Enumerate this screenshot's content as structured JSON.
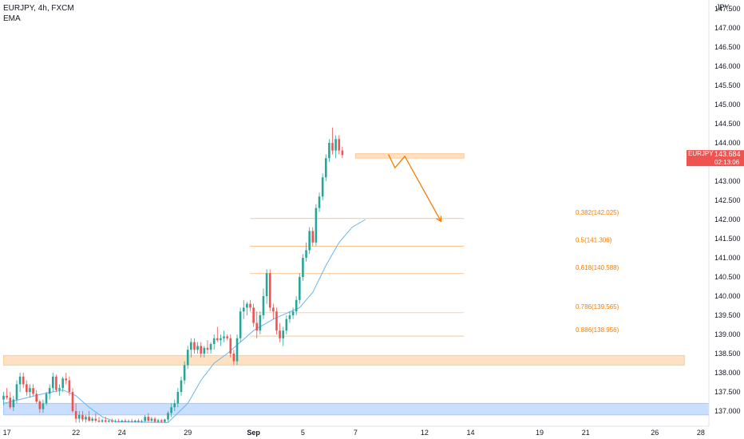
{
  "header": {
    "title": "EURJPY, 4h, FXCM",
    "indicator": "EMA"
  },
  "chart_data": {
    "type": "candlestick",
    "symbol": "EURJPY",
    "timeframe": "4h",
    "source": "FXCM",
    "currency_label": "JPY",
    "ylim": [
      136.7,
      148.0
    ],
    "y_ticks": [
      "137.000",
      "137.500",
      "138.000",
      "138.500",
      "139.000",
      "139.500",
      "140.000",
      "140.500",
      "141.000",
      "141.500",
      "142.000",
      "142.500",
      "143.000",
      "143.500",
      "144.000",
      "144.500",
      "145.000",
      "145.500",
      "146.000",
      "146.500",
      "147.000",
      "147.500"
    ],
    "x_ticks": [
      "17",
      "22",
      "24",
      "29",
      "Sep",
      "5",
      "7",
      "12",
      "14",
      "19",
      "21",
      "26",
      "28"
    ],
    "x_tick_index": [
      1,
      22,
      36,
      56,
      76,
      91,
      107,
      128,
      142,
      163,
      177,
      198,
      212
    ],
    "last_price": {
      "symbol": "EURJPY",
      "price": "143.684",
      "countdown": "02:13:06",
      "color": "#ef5350"
    },
    "zones": [
      {
        "y_low": 136.9,
        "y_high": 137.2,
        "from_index": 0,
        "to_index": 228,
        "color": "#a6c8ff"
      },
      {
        "y_low": 138.2,
        "y_high": 138.45,
        "from_index": 0,
        "to_index": 207,
        "color": "#ffcc99"
      },
      {
        "y_low": 143.6,
        "y_high": 143.72,
        "from_index": 107,
        "to_index": 140,
        "color": "#ffcc99"
      }
    ],
    "fib_levels": [
      {
        "label": "0.382(142.025)",
        "value": 142.025
      },
      {
        "label": "0.5(141.306)",
        "value": 141.306
      },
      {
        "label": "0.618(140.588)",
        "value": 140.588
      },
      {
        "label": "0.786(139.565)",
        "value": 139.565
      },
      {
        "label": "0.886(138.956)",
        "value": 138.956
      }
    ],
    "fib_range": {
      "from_index": 75,
      "to_index": 140
    },
    "projection_path": [
      {
        "i": 117,
        "price": 143.7
      },
      {
        "i": 119,
        "price": 143.35
      },
      {
        "i": 122,
        "price": 143.65
      },
      {
        "i": 133,
        "price": 141.95
      }
    ],
    "colors": {
      "up": "#26a69a",
      "down": "#ef5350",
      "ema": "#64b5f6",
      "fib": "#f57c00",
      "projection": "#f57c00",
      "axis": "#e0e3eb"
    },
    "candles": [
      {
        "o": 137.3,
        "h": 137.5,
        "l": 137.15,
        "c": 137.4
      },
      {
        "o": 137.4,
        "h": 137.6,
        "l": 137.3,
        "c": 137.35
      },
      {
        "o": 137.35,
        "h": 137.5,
        "l": 137.05,
        "c": 137.1
      },
      {
        "o": 137.1,
        "h": 137.4,
        "l": 137.0,
        "c": 137.3
      },
      {
        "o": 137.3,
        "h": 137.8,
        "l": 137.2,
        "c": 137.7
      },
      {
        "o": 137.7,
        "h": 138.0,
        "l": 137.5,
        "c": 137.9
      },
      {
        "o": 137.9,
        "h": 138.0,
        "l": 137.6,
        "c": 137.7
      },
      {
        "o": 137.7,
        "h": 137.8,
        "l": 137.4,
        "c": 137.5
      },
      {
        "o": 137.5,
        "h": 137.7,
        "l": 137.35,
        "c": 137.6
      },
      {
        "o": 137.6,
        "h": 137.7,
        "l": 137.4,
        "c": 137.45
      },
      {
        "o": 137.45,
        "h": 137.55,
        "l": 137.2,
        "c": 137.25
      },
      {
        "o": 137.25,
        "h": 137.3,
        "l": 136.95,
        "c": 137.05
      },
      {
        "o": 137.05,
        "h": 137.3,
        "l": 136.95,
        "c": 137.2
      },
      {
        "o": 137.2,
        "h": 137.5,
        "l": 137.15,
        "c": 137.45
      },
      {
        "o": 137.45,
        "h": 137.7,
        "l": 137.3,
        "c": 137.6
      },
      {
        "o": 137.6,
        "h": 138.0,
        "l": 137.5,
        "c": 137.9
      },
      {
        "o": 137.9,
        "h": 137.95,
        "l": 137.5,
        "c": 137.55
      },
      {
        "o": 137.55,
        "h": 137.7,
        "l": 137.4,
        "c": 137.6
      },
      {
        "o": 137.6,
        "h": 137.9,
        "l": 137.5,
        "c": 137.85
      },
      {
        "o": 137.85,
        "h": 138.0,
        "l": 137.7,
        "c": 137.8
      },
      {
        "o": 137.8,
        "h": 137.9,
        "l": 137.4,
        "c": 137.5
      },
      {
        "o": 137.5,
        "h": 137.6,
        "l": 136.95,
        "c": 137.0
      },
      {
        "o": 137.0,
        "h": 137.2,
        "l": 136.7,
        "c": 136.8
      },
      {
        "o": 136.8,
        "h": 137.0,
        "l": 136.7,
        "c": 136.9
      },
      {
        "o": 136.9,
        "h": 137.0,
        "l": 136.72,
        "c": 136.78
      },
      {
        "o": 136.78,
        "h": 136.9,
        "l": 136.7,
        "c": 136.85
      },
      {
        "o": 136.85,
        "h": 137.0,
        "l": 136.72,
        "c": 136.75
      },
      {
        "o": 136.75,
        "h": 136.85,
        "l": 136.7,
        "c": 136.8
      },
      {
        "o": 136.8,
        "h": 136.95,
        "l": 136.7,
        "c": 136.75
      },
      {
        "o": 136.75,
        "h": 136.85,
        "l": 136.7,
        "c": 136.72
      },
      {
        "o": 136.72,
        "h": 136.8,
        "l": 136.7,
        "c": 136.76
      },
      {
        "o": 136.76,
        "h": 136.85,
        "l": 136.7,
        "c": 136.72
      },
      {
        "o": 136.72,
        "h": 136.78,
        "l": 136.7,
        "c": 136.75
      },
      {
        "o": 136.75,
        "h": 136.8,
        "l": 136.7,
        "c": 136.72
      },
      {
        "o": 136.72,
        "h": 136.78,
        "l": 136.7,
        "c": 136.74
      },
      {
        "o": 136.74,
        "h": 136.8,
        "l": 136.7,
        "c": 136.72
      },
      {
        "o": 136.72,
        "h": 136.78,
        "l": 136.7,
        "c": 136.75
      },
      {
        "o": 136.75,
        "h": 136.8,
        "l": 136.7,
        "c": 136.72
      },
      {
        "o": 136.72,
        "h": 136.78,
        "l": 136.7,
        "c": 136.74
      },
      {
        "o": 136.74,
        "h": 136.8,
        "l": 136.7,
        "c": 136.72
      },
      {
        "o": 136.72,
        "h": 136.78,
        "l": 136.7,
        "c": 136.75
      },
      {
        "o": 136.75,
        "h": 136.8,
        "l": 136.7,
        "c": 136.72
      },
      {
        "o": 136.72,
        "h": 136.78,
        "l": 136.7,
        "c": 136.74
      },
      {
        "o": 136.74,
        "h": 136.9,
        "l": 136.7,
        "c": 136.85
      },
      {
        "o": 136.85,
        "h": 136.95,
        "l": 136.7,
        "c": 136.75
      },
      {
        "o": 136.75,
        "h": 136.85,
        "l": 136.7,
        "c": 136.8
      },
      {
        "o": 136.8,
        "h": 136.85,
        "l": 136.7,
        "c": 136.72
      },
      {
        "o": 136.72,
        "h": 136.8,
        "l": 136.7,
        "c": 136.76
      },
      {
        "o": 136.76,
        "h": 136.8,
        "l": 136.7,
        "c": 136.72
      },
      {
        "o": 136.72,
        "h": 136.8,
        "l": 136.7,
        "c": 136.78
      },
      {
        "o": 136.78,
        "h": 137.0,
        "l": 136.72,
        "c": 136.95
      },
      {
        "o": 136.95,
        "h": 137.2,
        "l": 136.85,
        "c": 137.1
      },
      {
        "o": 137.1,
        "h": 137.3,
        "l": 137.0,
        "c": 137.2
      },
      {
        "o": 137.2,
        "h": 137.6,
        "l": 137.1,
        "c": 137.5
      },
      {
        "o": 137.5,
        "h": 137.9,
        "l": 137.4,
        "c": 137.8
      },
      {
        "o": 137.8,
        "h": 138.3,
        "l": 137.7,
        "c": 138.2
      },
      {
        "o": 138.2,
        "h": 138.7,
        "l": 138.1,
        "c": 138.6
      },
      {
        "o": 138.6,
        "h": 138.9,
        "l": 138.4,
        "c": 138.8
      },
      {
        "o": 138.8,
        "h": 138.9,
        "l": 138.5,
        "c": 138.6
      },
      {
        "o": 138.6,
        "h": 138.8,
        "l": 138.5,
        "c": 138.7
      },
      {
        "o": 138.7,
        "h": 138.8,
        "l": 138.4,
        "c": 138.5
      },
      {
        "o": 138.5,
        "h": 138.7,
        "l": 138.4,
        "c": 138.65
      },
      {
        "o": 138.65,
        "h": 138.85,
        "l": 138.5,
        "c": 138.6
      },
      {
        "o": 138.6,
        "h": 138.8,
        "l": 138.5,
        "c": 138.75
      },
      {
        "o": 138.75,
        "h": 139.0,
        "l": 138.6,
        "c": 138.9
      },
      {
        "o": 138.9,
        "h": 139.2,
        "l": 138.8,
        "c": 138.85
      },
      {
        "o": 138.85,
        "h": 139.0,
        "l": 138.7,
        "c": 138.9
      },
      {
        "o": 138.9,
        "h": 139.1,
        "l": 138.8,
        "c": 138.95
      },
      {
        "o": 138.95,
        "h": 139.0,
        "l": 138.85,
        "c": 138.9
      },
      {
        "o": 138.9,
        "h": 139.0,
        "l": 138.4,
        "c": 138.5
      },
      {
        "o": 138.5,
        "h": 138.6,
        "l": 138.2,
        "c": 138.3
      },
      {
        "o": 138.3,
        "h": 139.0,
        "l": 138.2,
        "c": 138.9
      },
      {
        "o": 138.9,
        "h": 139.7,
        "l": 138.8,
        "c": 139.6
      },
      {
        "o": 139.6,
        "h": 139.9,
        "l": 139.4,
        "c": 139.7
      },
      {
        "o": 139.7,
        "h": 139.85,
        "l": 139.5,
        "c": 139.8
      },
      {
        "o": 139.8,
        "h": 139.9,
        "l": 139.6,
        "c": 139.7
      },
      {
        "o": 139.7,
        "h": 139.8,
        "l": 139.2,
        "c": 139.3
      },
      {
        "o": 139.3,
        "h": 139.6,
        "l": 138.9,
        "c": 139.1
      },
      {
        "o": 139.1,
        "h": 139.6,
        "l": 139.0,
        "c": 139.5
      },
      {
        "o": 139.5,
        "h": 140.2,
        "l": 139.4,
        "c": 140.0
      },
      {
        "o": 140.0,
        "h": 140.7,
        "l": 139.8,
        "c": 140.6
      },
      {
        "o": 140.6,
        "h": 140.7,
        "l": 139.6,
        "c": 139.7
      },
      {
        "o": 139.7,
        "h": 139.8,
        "l": 139.4,
        "c": 139.6
      },
      {
        "o": 139.6,
        "h": 139.7,
        "l": 139.0,
        "c": 139.1
      },
      {
        "o": 139.1,
        "h": 139.3,
        "l": 138.8,
        "c": 138.9
      },
      {
        "o": 138.9,
        "h": 139.2,
        "l": 138.7,
        "c": 139.1
      },
      {
        "o": 139.1,
        "h": 139.5,
        "l": 139.0,
        "c": 139.4
      },
      {
        "o": 139.4,
        "h": 139.6,
        "l": 139.3,
        "c": 139.5
      },
      {
        "o": 139.5,
        "h": 139.7,
        "l": 139.4,
        "c": 139.6
      },
      {
        "o": 139.6,
        "h": 140.0,
        "l": 139.5,
        "c": 139.9
      },
      {
        "o": 139.9,
        "h": 140.6,
        "l": 139.8,
        "c": 140.5
      },
      {
        "o": 140.5,
        "h": 141.1,
        "l": 140.4,
        "c": 141.0
      },
      {
        "o": 141.0,
        "h": 141.4,
        "l": 140.9,
        "c": 141.2
      },
      {
        "o": 141.2,
        "h": 141.8,
        "l": 141.1,
        "c": 141.7
      },
      {
        "o": 141.7,
        "h": 141.8,
        "l": 141.3,
        "c": 141.4
      },
      {
        "o": 141.4,
        "h": 142.4,
        "l": 141.3,
        "c": 142.3
      },
      {
        "o": 142.3,
        "h": 142.7,
        "l": 142.2,
        "c": 142.6
      },
      {
        "o": 142.6,
        "h": 143.2,
        "l": 142.5,
        "c": 143.1
      },
      {
        "o": 143.1,
        "h": 143.7,
        "l": 143.0,
        "c": 143.6
      },
      {
        "o": 143.6,
        "h": 144.1,
        "l": 143.5,
        "c": 144.0
      },
      {
        "o": 144.0,
        "h": 144.4,
        "l": 143.7,
        "c": 143.8
      },
      {
        "o": 143.8,
        "h": 144.2,
        "l": 143.6,
        "c": 144.1
      },
      {
        "o": 144.1,
        "h": 144.2,
        "l": 143.7,
        "c": 143.8
      },
      {
        "o": 143.8,
        "h": 143.9,
        "l": 143.6,
        "c": 143.684
      }
    ],
    "ema": [
      {
        "i": 0,
        "v": 137.2
      },
      {
        "i": 12,
        "v": 137.45
      },
      {
        "i": 18,
        "v": 137.55
      },
      {
        "i": 22,
        "v": 137.4
      },
      {
        "i": 26,
        "v": 137.1
      },
      {
        "i": 30,
        "v": 136.85
      },
      {
        "i": 34,
        "v": 136.72
      },
      {
        "i": 50,
        "v": 136.7
      },
      {
        "i": 56,
        "v": 137.2
      },
      {
        "i": 60,
        "v": 137.8
      },
      {
        "i": 64,
        "v": 138.25
      },
      {
        "i": 68,
        "v": 138.5
      },
      {
        "i": 72,
        "v": 138.8
      },
      {
        "i": 76,
        "v": 139.1
      },
      {
        "i": 82,
        "v": 139.4
      },
      {
        "i": 86,
        "v": 139.55
      },
      {
        "i": 90,
        "v": 139.7
      },
      {
        "i": 94,
        "v": 140.1
      },
      {
        "i": 98,
        "v": 140.8
      },
      {
        "i": 102,
        "v": 141.4
      },
      {
        "i": 106,
        "v": 141.8
      },
      {
        "i": 110,
        "v": 142.0
      }
    ]
  }
}
